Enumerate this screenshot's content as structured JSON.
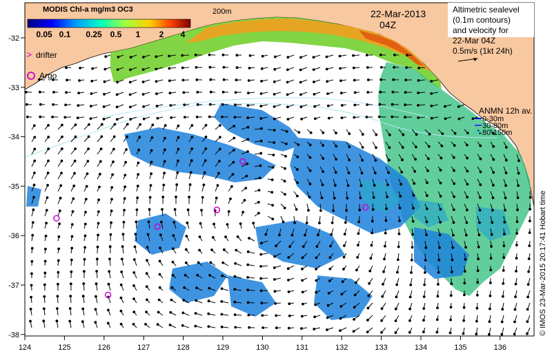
{
  "colorbar": {
    "title": "MODIS Chl-a mg/m3 OC3",
    "ticks": [
      "0.05",
      "0.1",
      "0.25",
      "0.5",
      "1",
      "2",
      "4"
    ]
  },
  "legend": {
    "drifter": "drifter",
    "argo": "Argo"
  },
  "isobath_label": "200m",
  "date": "22-Mar-2013",
  "time": "04Z",
  "altimetry_note": [
    "Altimetric sealevel",
    "(0.1m contours)",
    "and velocity for",
    "22-Mar 04Z",
    "0.5m/s (1kt 24h)"
  ],
  "anmn": {
    "title": "ANMN 12h av.",
    "items": [
      {
        "label": "0-30m",
        "color": "#0000cc"
      },
      {
        "label": "30-80m",
        "color": "#3333ff"
      },
      {
        "label": "80-150m",
        "color": "#33cccc"
      }
    ]
  },
  "credit": "© IMOS 23-Mar-2015 20:17:41 Hobart time",
  "axes": {
    "x_ticks": [
      "124",
      "125",
      "126",
      "127",
      "128",
      "129",
      "130",
      "131",
      "132",
      "133",
      "134",
      "135",
      "136"
    ],
    "y_ticks": [
      "-32",
      "-33",
      "-34",
      "-35",
      "-36",
      "-37",
      "-38"
    ]
  },
  "colors": {
    "land": "#f8c8a0",
    "chl_low": "#1e82dc",
    "chl_mid": "#2dbd7a",
    "chl_high": "#f08020",
    "argo": "#cc00cc"
  },
  "argo_floats": [
    {
      "lon": 124.8,
      "lat": -35.65
    },
    {
      "lon": 126.1,
      "lat": -37.2
    },
    {
      "lon": 127.35,
      "lat": -35.82
    },
    {
      "lon": 128.85,
      "lat": -35.48
    },
    {
      "lon": 129.5,
      "lat": -34.5
    },
    {
      "lon": 132.6,
      "lat": -35.43
    }
  ]
}
